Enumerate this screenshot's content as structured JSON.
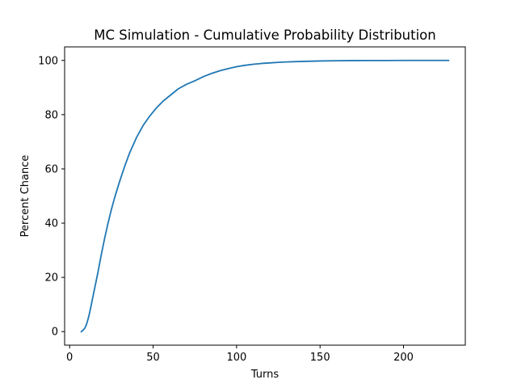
{
  "chart_data": {
    "type": "line",
    "title": "MC Simulation - Cumulative Probability Distribution",
    "xlabel": "Turns",
    "ylabel": "Percent Chance",
    "xlim": [
      -3,
      237
    ],
    "ylim": [
      -5,
      105
    ],
    "xticks": [
      0,
      50,
      100,
      150,
      200
    ],
    "yticks": [
      0,
      20,
      40,
      60,
      80,
      100
    ],
    "grid": false,
    "series": [
      {
        "color": "#1f77b4",
        "x": [
          7,
          8,
          9,
          10,
          11,
          12,
          13,
          14,
          15,
          17,
          19,
          21,
          23,
          25,
          27,
          30,
          33,
          36,
          40,
          44,
          48,
          52,
          56,
          60,
          65,
          70,
          75,
          80,
          85,
          90,
          95,
          100,
          105,
          110,
          115,
          120,
          125,
          130,
          140,
          150,
          160,
          170,
          180,
          190,
          200,
          210,
          220,
          227
        ],
        "y": [
          0,
          0.5,
          1.2,
          2.5,
          4.5,
          7,
          10,
          13,
          16,
          22,
          28.5,
          34.5,
          40,
          45,
          49.5,
          55.5,
          61,
          66,
          71.5,
          76,
          79.5,
          82.5,
          85,
          87,
          89.5,
          91.2,
          92.5,
          94,
          95.2,
          96.2,
          97,
          97.7,
          98.2,
          98.6,
          98.9,
          99.1,
          99.3,
          99.45,
          99.65,
          99.8,
          99.9,
          99.95,
          99.97,
          99.98,
          100,
          100,
          100,
          100
        ]
      }
    ]
  }
}
